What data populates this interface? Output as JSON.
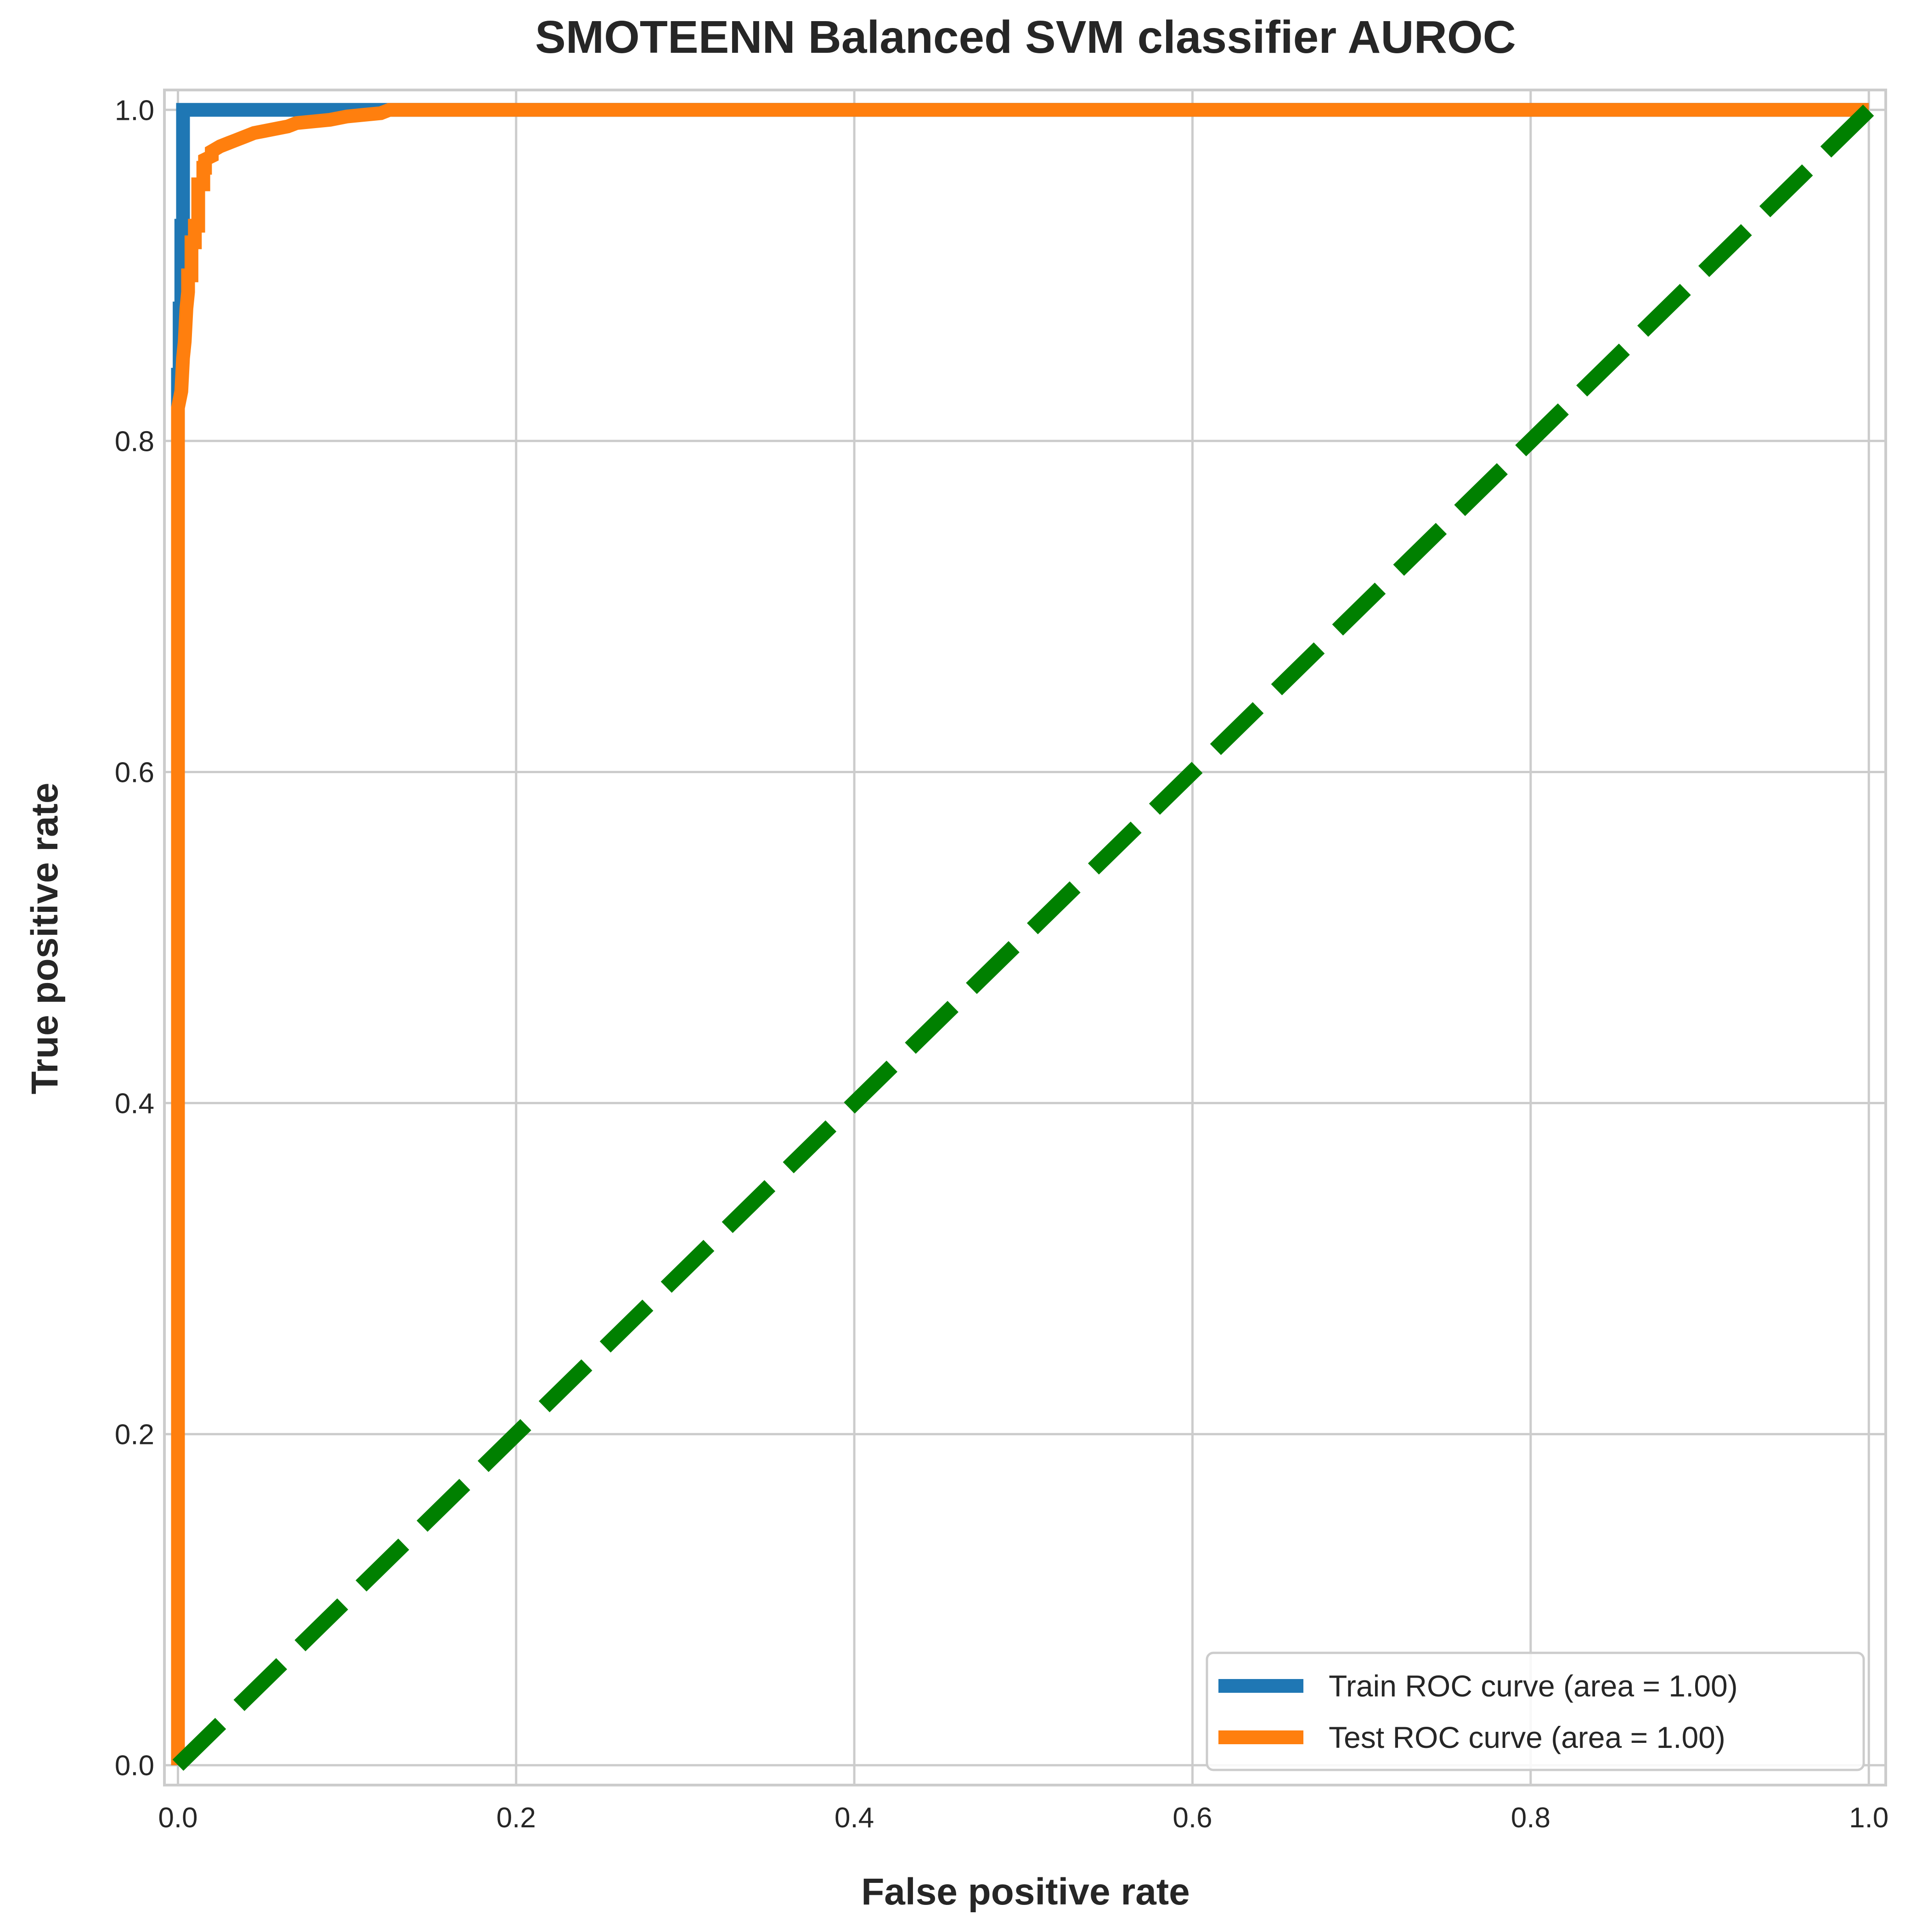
{
  "chart_data": {
    "type": "line",
    "title": "SMOTEENN Balanced SVM classifier AUROC",
    "xlabel": "False positive rate",
    "ylabel": "True positive rate",
    "xlim": [
      -0.008,
      1.01
    ],
    "ylim": [
      -0.012,
      1.012
    ],
    "grid": true,
    "legend_position": "lower right",
    "x_ticks": [
      0.0,
      0.2,
      0.4,
      0.6,
      0.8,
      1.0
    ],
    "y_ticks": [
      0.0,
      0.2,
      0.4,
      0.6,
      0.8,
      1.0
    ],
    "x_tick_labels": [
      "0.0",
      "0.2",
      "0.4",
      "0.6",
      "0.8",
      "1.0"
    ],
    "y_tick_labels": [
      "0.0",
      "0.2",
      "0.4",
      "0.6",
      "0.8",
      "1.0"
    ],
    "series": [
      {
        "name": "Train ROC curve (area = 1.00)",
        "color": "#1f77b4",
        "style": "solid",
        "x": [
          0.0,
          0.0,
          0.0,
          0.001,
          0.001,
          0.002,
          0.002,
          0.003,
          0.003,
          0.12,
          1.0
        ],
        "y": [
          0.0,
          0.82,
          0.84,
          0.84,
          0.88,
          0.88,
          0.93,
          0.93,
          1.0,
          1.0,
          1.0
        ]
      },
      {
        "name": "Test ROC curve (area = 1.00)",
        "color": "#ff7f0e",
        "style": "solid",
        "x": [
          0.0,
          0.0,
          0.0,
          0.002,
          0.003,
          0.004,
          0.005,
          0.006,
          0.006,
          0.008,
          0.008,
          0.01,
          0.01,
          0.012,
          0.012,
          0.015,
          0.015,
          0.016,
          0.016,
          0.02,
          0.02,
          0.025,
          0.03,
          0.035,
          0.04,
          0.045,
          0.05,
          0.055,
          0.06,
          0.065,
          0.07,
          0.08,
          0.09,
          0.095,
          0.1,
          0.11,
          0.12,
          0.125,
          1.0
        ],
        "y": [
          0.0,
          0.8,
          0.82,
          0.83,
          0.85,
          0.86,
          0.88,
          0.89,
          0.9,
          0.9,
          0.92,
          0.92,
          0.93,
          0.93,
          0.955,
          0.955,
          0.965,
          0.965,
          0.97,
          0.972,
          0.975,
          0.978,
          0.98,
          0.982,
          0.984,
          0.986,
          0.987,
          0.988,
          0.989,
          0.99,
          0.992,
          0.993,
          0.994,
          0.995,
          0.996,
          0.997,
          0.998,
          1.0,
          1.0
        ]
      },
      {
        "name": "",
        "color": "#008000",
        "style": "dashed",
        "x": [
          0.0,
          1.0
        ],
        "y": [
          0.0,
          1.0
        ]
      }
    ]
  }
}
